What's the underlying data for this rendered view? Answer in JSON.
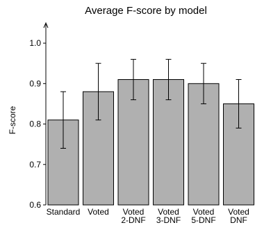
{
  "chart_data": {
    "type": "bar",
    "title": "Average F-score by model",
    "ylabel": "F-score",
    "xlabel": "",
    "ylim": [
      0.6,
      1.05
    ],
    "yticks": [
      "0.6",
      "0.7",
      "0.8",
      "0.9",
      "1.0"
    ],
    "categories": [
      [
        "Standard"
      ],
      [
        "Voted"
      ],
      [
        "Voted",
        "2-DNF"
      ],
      [
        "Voted",
        "3-DNF"
      ],
      [
        "Voted",
        "5-DNF"
      ],
      [
        "Voted",
        "DNF"
      ]
    ],
    "values": [
      0.81,
      0.88,
      0.91,
      0.91,
      0.9,
      0.85
    ],
    "error_low": [
      0.74,
      0.81,
      0.86,
      0.86,
      0.85,
      0.79
    ],
    "error_high": [
      0.88,
      0.95,
      0.96,
      0.96,
      0.95,
      0.91
    ],
    "colors": {
      "bar": "#b0b0b0",
      "edge": "#000000"
    }
  }
}
